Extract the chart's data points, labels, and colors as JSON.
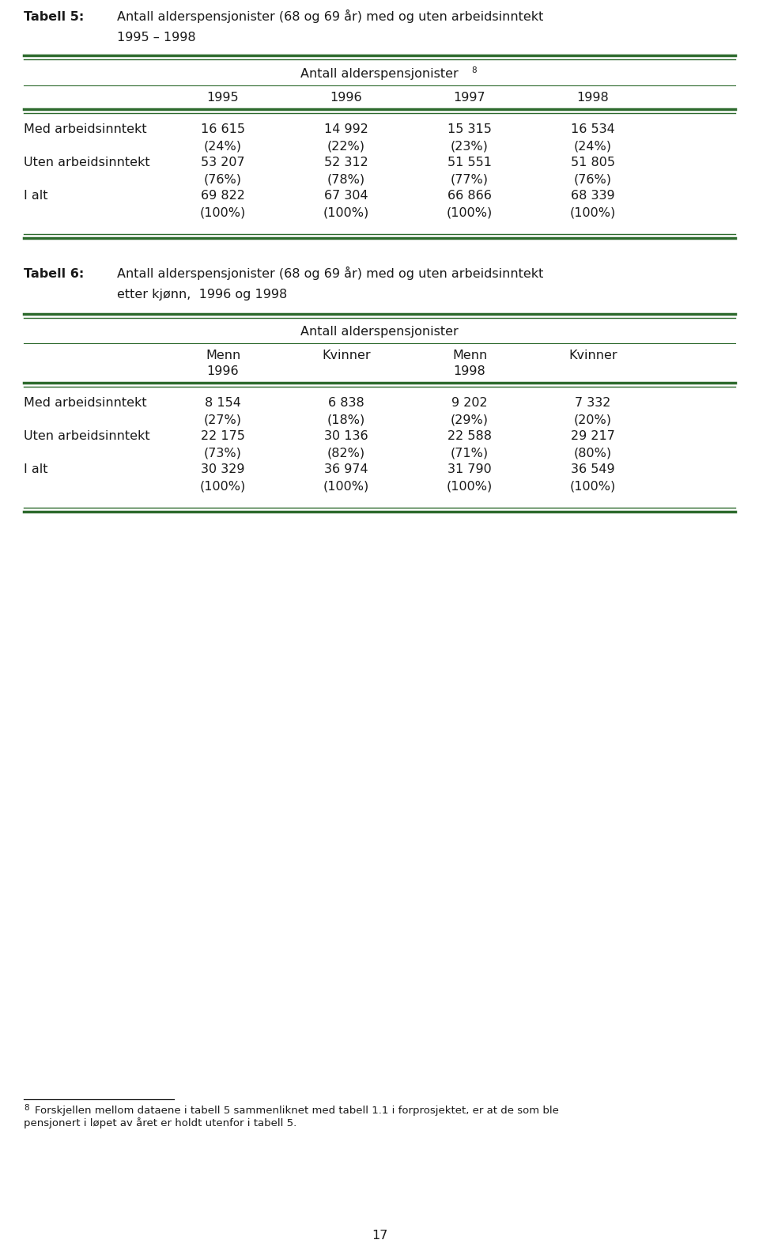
{
  "background_color": "#ffffff",
  "page_number": "17",
  "table5": {
    "title_bold": "Tabell 5:",
    "title_text": "Antall alderspensjonister (68 og 69 år) med og uten arbeidsinntekt",
    "title_text2": "1995 – 1998",
    "header_span": "Antall alderspensjonister",
    "superscript": "8",
    "col_headers": [
      "1995",
      "1996",
      "1997",
      "1998"
    ],
    "rows": [
      {
        "label": "Med arbeidsinntekt",
        "values": [
          "16 615",
          "14 992",
          "15 315",
          "16 534"
        ],
        "pcts": [
          "(24%)",
          "(22%)",
          "(23%)",
          "(24%)"
        ]
      },
      {
        "label": "Uten arbeidsinntekt",
        "values": [
          "53 207",
          "52 312",
          "51 551",
          "51 805"
        ],
        "pcts": [
          "(76%)",
          "(78%)",
          "(77%)",
          "(76%)"
        ]
      },
      {
        "label": "I alt",
        "values": [
          "69 822",
          "67 304",
          "66 866",
          "68 339"
        ],
        "pcts": [
          "(100%)",
          "(100%)",
          "(100%)",
          "(100%)"
        ]
      }
    ]
  },
  "table6": {
    "title_bold": "Tabell 6:",
    "title_text": "Antall alderspensjonister (68 og 69 år) med og uten arbeidsinntekt",
    "title_text2": "etter kjønn,  1996 og 1998",
    "header_span": "Antall alderspensjonister",
    "col_headers": [
      "Menn",
      "Kvinner",
      "Menn",
      "Kvinner"
    ],
    "year_headers": [
      "1996",
      "1998"
    ],
    "year_header_cols": [
      0,
      2
    ],
    "rows": [
      {
        "label": "Med arbeidsinntekt",
        "values": [
          "8 154",
          "6 838",
          "9 202",
          "7 332"
        ],
        "pcts": [
          "(27%)",
          "(18%)",
          "(29%)",
          "(20%)"
        ]
      },
      {
        "label": "Uten arbeidsinntekt",
        "values": [
          "22 175",
          "30 136",
          "22 588",
          "29 217"
        ],
        "pcts": [
          "(73%)",
          "(82%)",
          "(71%)",
          "(80%)"
        ]
      },
      {
        "label": "I alt",
        "values": [
          "30 329",
          "36 974",
          "31 790",
          "36 549"
        ],
        "pcts": [
          "(100%)",
          "(100%)",
          "(100%)",
          "(100%)"
        ]
      }
    ]
  },
  "footnote_number": "8",
  "footnote_line1": "Forskjellen mellom dataene i tabell 5 sammenliknet med tabell 1.1 i forprosjektet, er at de som ble",
  "footnote_line2": "pensjonert i løpet av året er holdt utenfor i tabell 5.",
  "line_color": "#2d6a2d",
  "text_color": "#1a1a1a",
  "font_size": 11.5,
  "footnote_font_size": 9.5,
  "page_num_font_size": 11.5
}
